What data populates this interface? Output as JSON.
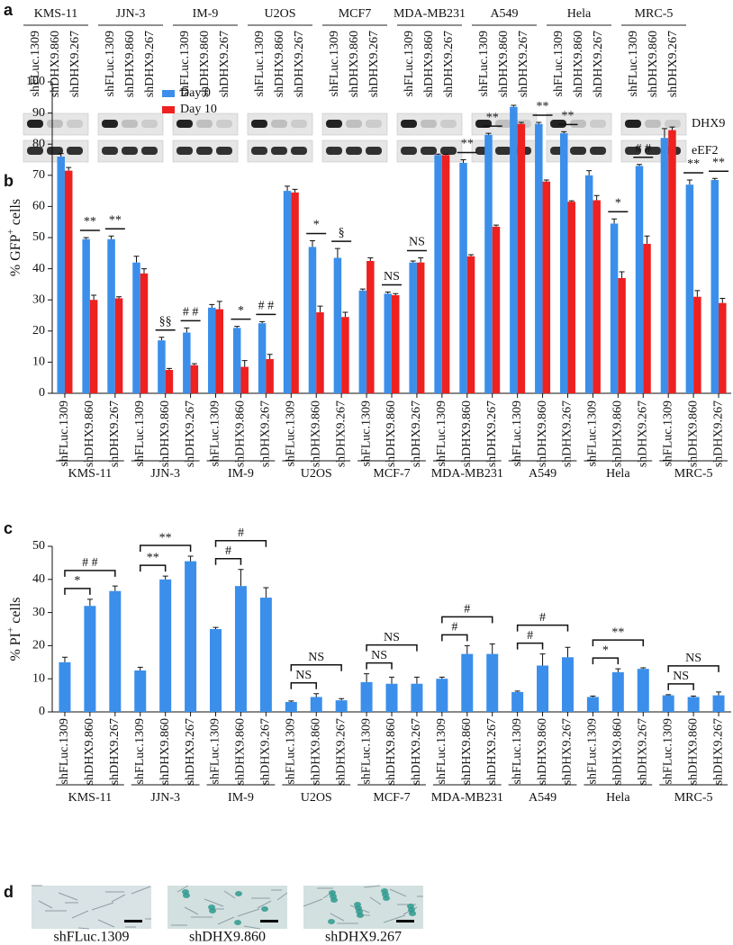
{
  "panel_a": {
    "letter": "a",
    "cell_lines": [
      "KMS-11",
      "JJN-3",
      "IM-9",
      "U2OS",
      "MCF7",
      "MDA-MB231",
      "A549",
      "Hela",
      "MRC-5"
    ],
    "lanes": [
      "shFLuc.1309",
      "shDHX9.860",
      "shDHX9.267"
    ],
    "bands": [
      "DHX9",
      "eEF2"
    ]
  },
  "chart_data": [
    {
      "type": "bar",
      "letter": "b",
      "ylabel": [
        "% GFP",
        "+",
        " cells"
      ],
      "categories": [
        "shFLuc.1309",
        "shDHX9.860",
        "shDHX9.267",
        "shFLuc.1309",
        "shDHX9.860",
        "shDHX9.267",
        "shFLuc.1309",
        "shDHX9.860",
        "shDHX9.267",
        "shFLuc.1309",
        "shDHX9.860",
        "shDHX9.267",
        "shFLuc.1309",
        "shDHX9.860",
        "shDHX9.267",
        "shFLuc.1309",
        "shDHX9.860",
        "shDHX9.267",
        "shFLuc.1309",
        "shDHX9.860",
        "shDHX9.267",
        "shFLuc.1309",
        "shDHX9.860",
        "shDHX9.267",
        "shFLuc.1309",
        "shDHX9.860",
        "shDHX9.267"
      ],
      "groups": [
        "KMS-11",
        "JJN-3",
        "IM-9",
        "U2OS",
        "MCF-7",
        "MDA-MB231",
        "A549",
        "Hela",
        "MRC-5"
      ],
      "series": [
        {
          "name": "Day 0",
          "color": "#3b8fea",
          "values": [
            76,
            49.5,
            49.5,
            42,
            17,
            19.5,
            27.5,
            21,
            22.5,
            65,
            47,
            43.5,
            33,
            32,
            42,
            76.5,
            74,
            83,
            92,
            86.5,
            83.5,
            70,
            54.5,
            73,
            82,
            67,
            68.5
          ],
          "errors": [
            1,
            0.5,
            1,
            2,
            1,
            1.5,
            1,
            0.5,
            0.5,
            1.5,
            2,
            3,
            0.5,
            0.5,
            0.5,
            0.3,
            1,
            0.5,
            0.5,
            0.5,
            0.5,
            1.5,
            1.5,
            0.5,
            3,
            1.5,
            0.5
          ]
        },
        {
          "name": "Day 10",
          "color": "#ee2020",
          "values": [
            71.5,
            30,
            30.5,
            38.5,
            7.5,
            9,
            27,
            8.5,
            11,
            64.5,
            26,
            24.5,
            42.5,
            31.5,
            42,
            76.5,
            44,
            53.5,
            86.5,
            68,
            61.5,
            62,
            37,
            48,
            84.5,
            31,
            29
          ],
          "errors": [
            1,
            1.5,
            0.5,
            1.5,
            0.5,
            0.5,
            2.5,
            2,
            1.5,
            1,
            2,
            1.5,
            1,
            0.5,
            1.5,
            0.3,
            0.5,
            0.5,
            0.5,
            0.5,
            0.3,
            1.5,
            2,
            2.5,
            1,
            2,
            1.5
          ]
        }
      ],
      "annotations": [
        null,
        "**",
        "**",
        null,
        "§§",
        "# #",
        null,
        "*",
        "# #",
        null,
        "*",
        "§",
        null,
        "NS",
        "NS",
        null,
        "**",
        "**",
        null,
        "**",
        "**",
        null,
        "*",
        "# #",
        null,
        "**",
        "**"
      ],
      "ylim": [
        0,
        100
      ],
      "yticks": [
        0,
        10,
        20,
        30,
        40,
        50,
        60,
        70,
        80,
        90,
        100
      ]
    },
    {
      "type": "bar",
      "letter": "c",
      "ylabel": [
        "% PI",
        "+",
        " cells"
      ],
      "categories": [
        "shFLuc.1309",
        "shDHX9.860",
        "shDHX9.267",
        "shFLuc.1309",
        "shDHX9.860",
        "shDHX9.267",
        "shFLuc.1309",
        "shDHX9.860",
        "shDHX9.267",
        "shFLuc.1309",
        "shDHX9.860",
        "shDHX9.267",
        "shFLuc.1309",
        "shDHX9.860",
        "shDHX9.267",
        "shFLuc.1309",
        "shDHX9.860",
        "shDHX9.267",
        "shFLuc.1309",
        "shDHX9.860",
        "shDHX9.267",
        "shFLuc.1309",
        "shDHX9.860",
        "shDHX9.267",
        "shFLuc.1309",
        "shDHX9.860",
        "shDHX9.267"
      ],
      "groups": [
        "KMS-11",
        "JJN-3",
        "IM-9",
        "U2OS",
        "MCF-7",
        "MDA-MB231",
        "A549",
        "Hela",
        "MRC-5"
      ],
      "series": [
        {
          "color": "#3b8fea",
          "values": [
            15,
            32,
            36.5,
            12.5,
            40,
            45.5,
            25,
            38,
            34.5,
            3,
            4.5,
            3.5,
            9,
            8.5,
            8.5,
            10,
            17.5,
            17.5,
            6,
            14,
            16.5,
            4.5,
            12,
            13,
            5,
            4.5,
            5
          ],
          "errors": [
            1.5,
            2,
            1.5,
            1,
            1,
            1.5,
            0.5,
            5,
            3,
            0.3,
            1,
            0.5,
            2.5,
            2,
            2,
            0.5,
            2.5,
            3,
            0.3,
            3.5,
            3,
            0.3,
            1,
            0.3,
            0.2,
            0.3,
            1
          ]
        }
      ],
      "annotations": [
        null,
        "*",
        "# #",
        null,
        "**",
        "**",
        null,
        "#",
        "#",
        null,
        "NS",
        "NS",
        null,
        "NS",
        "NS",
        null,
        "#",
        "#",
        null,
        "#",
        "#",
        null,
        "*",
        "**",
        null,
        "NS",
        "NS"
      ],
      "ylim": [
        0,
        50
      ],
      "yticks": [
        0,
        10,
        20,
        30,
        40,
        50
      ]
    }
  ],
  "panel_d": {
    "letter": "d",
    "images": [
      "shFLuc.1309",
      "shDHX9.860",
      "shDHX9.267"
    ]
  }
}
